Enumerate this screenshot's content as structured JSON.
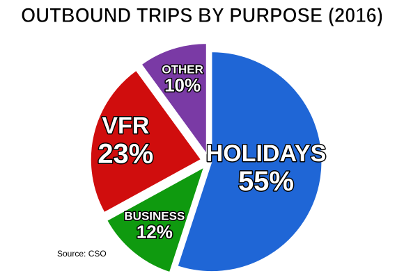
{
  "chart_data": {
    "type": "pie",
    "title": "OUTBOUND TRIPS BY PURPOSE (2016)",
    "categories": [
      "HOLIDAYS",
      "BUSINESS",
      "VFR",
      "OTHER"
    ],
    "values": [
      55,
      12,
      23,
      10
    ],
    "value_labels": [
      "55%",
      "12%",
      "23%",
      "10%"
    ],
    "colors": [
      "#1f66d6",
      "#0f9a0f",
      "#d00d0d",
      "#7a3aa5"
    ],
    "source": "Source: CSO"
  }
}
